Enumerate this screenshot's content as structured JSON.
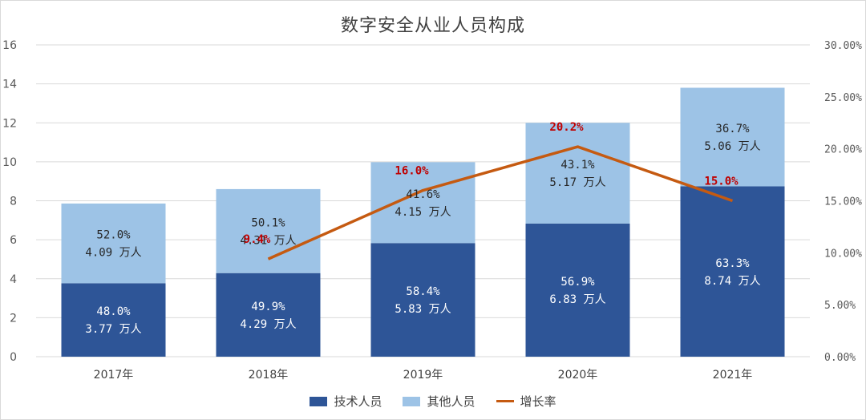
{
  "chart_data": {
    "type": "bar",
    "stacked": true,
    "title": "数字安全从业人员构成",
    "categories": [
      "2017年",
      "2018年",
      "2019年",
      "2020年",
      "2021年"
    ],
    "series": [
      {
        "name": "技术人员",
        "color": "#2e5597",
        "values": [
          3.77,
          4.29,
          5.83,
          6.83,
          8.74
        ],
        "share_labels": [
          "48.0%",
          "49.9%",
          "58.4%",
          "56.9%",
          "63.3%"
        ],
        "value_labels": [
          "3.77 万人",
          "4.29 万人",
          "5.83 万人",
          "6.83 万人",
          "8.74 万人"
        ]
      },
      {
        "name": "其他人员",
        "color": "#9dc3e6",
        "values": [
          4.09,
          4.31,
          4.15,
          5.17,
          5.06
        ],
        "share_labels": [
          "52.0%",
          "50.1%",
          "41.6%",
          "43.1%",
          "36.7%"
        ],
        "value_labels": [
          "4.09 万人",
          "4.31 万人",
          "4.15 万人",
          "5.17 万人",
          "5.06 万人"
        ]
      }
    ],
    "line_series": {
      "name": "增长率",
      "color": "#c55a11",
      "axis": "right",
      "values": [
        null,
        9.4,
        16.0,
        20.2,
        15.0
      ],
      "labels": [
        "",
        "9.4%",
        "16.0%",
        "20.2%",
        "15.0%"
      ]
    },
    "ylim": [
      0,
      16
    ],
    "yticks": [
      "0",
      "2",
      "4",
      "6",
      "8",
      "10",
      "12",
      "14",
      "16"
    ],
    "y2lim": [
      0,
      30
    ],
    "y2ticks": [
      "0.00%",
      "5.00%",
      "10.00%",
      "15.00%",
      "20.00%",
      "25.00%",
      "30.00%"
    ],
    "grid": true,
    "legend_position": "bottom"
  }
}
